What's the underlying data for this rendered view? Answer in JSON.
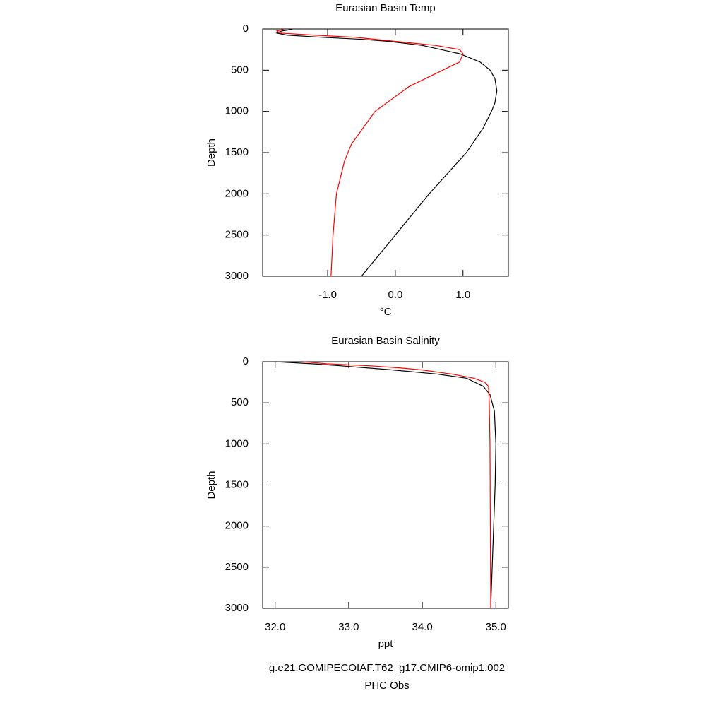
{
  "chart_data": [
    {
      "type": "line",
      "title": "Eurasian Basin Temp",
      "xlabel": "°C",
      "ylabel": "Depth",
      "xlim": [
        -1.96,
        1.67
      ],
      "xticks": [
        {
          "value": -1,
          "label": "-1.0"
        },
        {
          "value": 0,
          "label": "0.0"
        },
        {
          "value": 1,
          "label": "1.0"
        }
      ],
      "ylim": [
        3000,
        0
      ],
      "yticks": [
        0,
        500,
        1000,
        1500,
        2000,
        2500,
        3000
      ],
      "series": [
        {
          "name": "g.e21.GOMIPECOIAF.T62_g17.CMIP6-omip1.002",
          "color": "#000000",
          "y": [
            5,
            25,
            50,
            75,
            100,
            125,
            150,
            200,
            300,
            400,
            500,
            600,
            750,
            900,
            1000,
            1200,
            1500,
            1800,
            2000,
            2200,
            2400,
            2600,
            2800,
            3000
          ],
          "values": [
            -1.52,
            -1.68,
            -1.75,
            -1.6,
            -1.1,
            -0.5,
            -0.1,
            0.4,
            0.95,
            1.25,
            1.4,
            1.47,
            1.5,
            1.47,
            1.42,
            1.3,
            1.05,
            0.72,
            0.5,
            0.3,
            0.1,
            -0.1,
            -0.3,
            -0.5
          ]
        },
        {
          "name": "PHC Obs",
          "color": "#ff0000",
          "y": [
            5,
            25,
            50,
            75,
            100,
            150,
            200,
            250,
            300,
            400,
            500,
            700,
            1000,
            1400,
            1600,
            2000,
            2500,
            3000
          ],
          "values": [
            -1.65,
            -1.75,
            -1.7,
            -1.2,
            -0.6,
            0.0,
            0.6,
            0.95,
            1.0,
            0.95,
            0.7,
            0.2,
            -0.3,
            -0.65,
            -0.75,
            -0.87,
            -0.92,
            -0.95
          ]
        }
      ]
    },
    {
      "type": "line",
      "title": "Eurasian Basin Salinity",
      "xlabel": "ppt",
      "ylabel": "Depth",
      "xlim": [
        31.83,
        35.17
      ],
      "xticks": [
        {
          "value": 32,
          "label": "32.0"
        },
        {
          "value": 33,
          "label": "33.0"
        },
        {
          "value": 34,
          "label": "34.0"
        },
        {
          "value": 35,
          "label": "35.0"
        }
      ],
      "ylim": [
        3000,
        0
      ],
      "yticks": [
        0,
        500,
        1000,
        1500,
        2000,
        2500,
        3000
      ],
      "series": [
        {
          "name": "g.e21.GOMIPECOIAF.T62_g17.CMIP6-omip1.002",
          "color": "#000000",
          "y": [
            0,
            25,
            50,
            100,
            150,
            200,
            300,
            400,
            600,
            1000,
            1500,
            2000,
            2500,
            3000
          ],
          "values": [
            32.0,
            32.5,
            32.9,
            33.6,
            34.2,
            34.6,
            34.83,
            34.92,
            34.98,
            35.0,
            34.99,
            34.97,
            34.95,
            34.93
          ]
        },
        {
          "name": "PHC Obs",
          "color": "#ff0000",
          "y": [
            0,
            25,
            50,
            75,
            100,
            150,
            200,
            250,
            300,
            500,
            1000,
            3000
          ],
          "values": [
            32.38,
            32.7,
            33.3,
            33.7,
            34.0,
            34.4,
            34.7,
            34.85,
            34.9,
            34.91,
            34.92,
            34.93
          ]
        }
      ]
    }
  ]
}
